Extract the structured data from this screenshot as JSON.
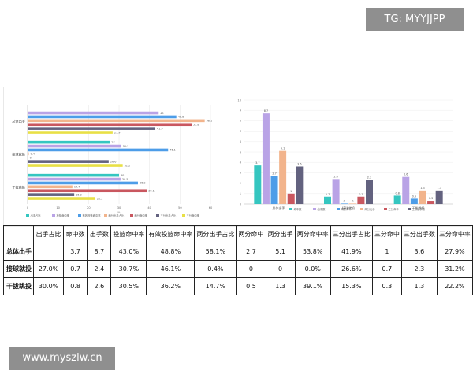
{
  "watermarks": {
    "top": "TG: MYYJJPP",
    "bottom": "www.myszlw.cn"
  },
  "colors": {
    "teal": "#35c6c0",
    "purple": "#b9a3e6",
    "blue": "#4d9de8",
    "peach": "#f2b48c",
    "red": "#c9575f",
    "slate": "#63627f",
    "yellow": "#e8e046"
  },
  "chart_data": [
    {
      "type": "bar",
      "orientation": "horizontal",
      "categories": [
        "总体出手",
        "接球就投",
        "干拔跳投"
      ],
      "xlim": [
        0,
        60
      ],
      "xticks": [
        "0",
        "10",
        "20",
        "30",
        "40",
        "50",
        "60"
      ],
      "xunit": "(%)",
      "series": [
        {
          "name": "出手占比",
          "color": "#35c6c0",
          "values": [
            null,
            27.0,
            30.0
          ],
          "labels": [
            "",
            "27",
            "30"
          ]
        },
        {
          "name": "投篮命中率",
          "color": "#b9a3e6",
          "values": [
            43.0,
            30.7,
            30.5
          ],
          "labels": [
            "43",
            "30.7",
            "30.5"
          ]
        },
        {
          "name": "有效投篮命中率",
          "color": "#4d9de8",
          "values": [
            48.8,
            46.1,
            36.2
          ],
          "labels": [
            "48.8",
            "46.1",
            "36.2"
          ]
        },
        {
          "name": "两分出手占比",
          "color": "#f2b48c",
          "values": [
            58.1,
            0.4,
            14.7
          ],
          "labels": [
            "58.1",
            "0.4",
            "14.7"
          ]
        },
        {
          "name": "两分命中率",
          "color": "#c9575f",
          "values": [
            53.8,
            0.0,
            39.1
          ],
          "labels": [
            "53.8",
            "0",
            "39.1"
          ]
        },
        {
          "name": "三分出手占比",
          "color": "#63627f",
          "values": [
            41.9,
            26.6,
            15.3
          ],
          "labels": [
            "41.9",
            "26.6",
            "15.3"
          ]
        },
        {
          "name": "三分命中率",
          "color": "#e8e046",
          "values": [
            27.9,
            31.2,
            22.2
          ],
          "labels": [
            "27.9",
            "31.2",
            "22.2"
          ]
        }
      ]
    },
    {
      "type": "bar",
      "orientation": "vertical",
      "categories": [
        "总体出手",
        "接球就投",
        "干拔跳投"
      ],
      "ylim": [
        0,
        10
      ],
      "yticks": [
        "0",
        "1",
        "2",
        "3",
        "4",
        "5",
        "6",
        "7",
        "8",
        "9",
        "10"
      ],
      "series": [
        {
          "name": "命中数",
          "color": "#35c6c0",
          "values": [
            3.7,
            0.7,
            0.8
          ]
        },
        {
          "name": "出手数",
          "color": "#b9a3e6",
          "values": [
            8.7,
            2.4,
            2.6
          ]
        },
        {
          "name": "两分命中",
          "color": "#4d9de8",
          "values": [
            2.7,
            0,
            0.5
          ]
        },
        {
          "name": "两分出手",
          "color": "#f2b48c",
          "values": [
            5.1,
            0,
            1.3
          ]
        },
        {
          "name": "三分命中",
          "color": "#c9575f",
          "values": [
            1,
            0.7,
            0.3
          ]
        },
        {
          "name": "三分出手数",
          "color": "#63627f",
          "values": [
            3.6,
            2.3,
            1.3
          ]
        }
      ]
    }
  ],
  "table": {
    "headers": [
      "",
      "出手占比",
      "命中数",
      "出手数",
      "投篮命中率",
      "有效投篮命中率",
      "两分出手占比",
      "两分命中",
      "两分出手",
      "两分命中率",
      "三分出手占比",
      "三分命中",
      "三分出手数",
      "三分命中率"
    ],
    "rows": [
      [
        "总体出手",
        "",
        "3.7",
        "8.7",
        "43.0%",
        "48.8%",
        "58.1%",
        "2.7",
        "5.1",
        "53.8%",
        "41.9%",
        "1",
        "3.6",
        "27.9%"
      ],
      [
        "接球就投",
        "27.0%",
        "0.7",
        "2.4",
        "30.7%",
        "46.1%",
        "0.4%",
        "0",
        "0",
        "0.0%",
        "26.6%",
        "0.7",
        "2.3",
        "31.2%"
      ],
      [
        "干拔跳投",
        "30.0%",
        "0.8",
        "2.6",
        "30.5%",
        "36.2%",
        "14.7%",
        "0.5",
        "1.3",
        "39.1%",
        "15.3%",
        "0.3",
        "1.3",
        "22.2%"
      ]
    ]
  }
}
